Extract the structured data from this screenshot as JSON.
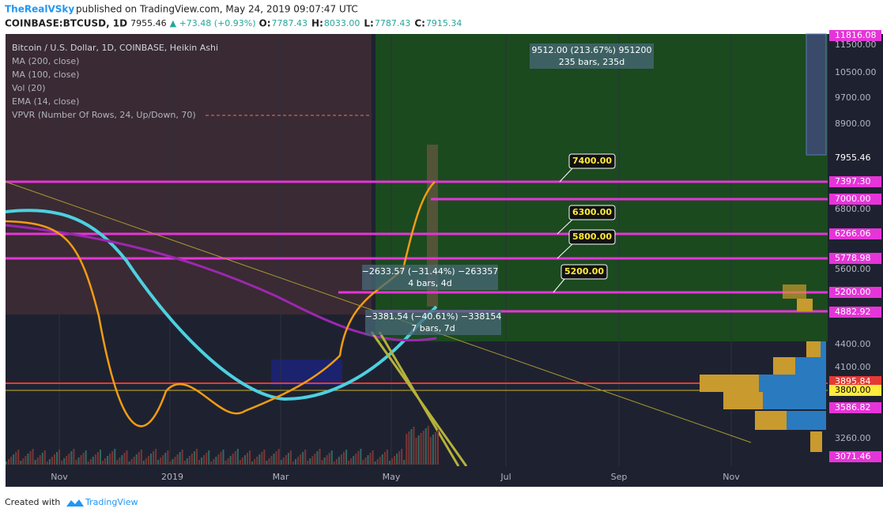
{
  "header": {
    "author": "TheRealVSky",
    "published": "published on TradingView.com, May 24, 2019 09:07:47 UTC",
    "symbol": "COINBASE:BTCUSD, 1D",
    "last": "7955.46",
    "change": "▲ +73.48 (+0.93%)",
    "ohlc": [
      {
        "key": "O:",
        "value": "7787.43"
      },
      {
        "key": "H:",
        "value": "8033.00"
      },
      {
        "key": "L:",
        "value": "7787.43"
      },
      {
        "key": "C:",
        "value": "7915.34"
      }
    ]
  },
  "legend": [
    "Bitcoin / U.S. Dollar, 1D, COINBASE, Heikin Ashi",
    "MA (200, close)",
    "MA (100, close)",
    "Vol (20)",
    "EMA (14, close)",
    "VPVR (Number Of Rows, 24, Up/Down, 70)"
  ],
  "price_axis": [
    "11816.08",
    "11500.00",
    "10500.00",
    "9700.00",
    "8900.00",
    "7955.46",
    "7397.30",
    "7000.00",
    "6800.00",
    "6266.06",
    "5778.98",
    "5600.00",
    "5200.00",
    "4882.92",
    "4400.00",
    "4100.00",
    "3895.84",
    "3800.00",
    "3586.82",
    "3260.00",
    "3071.46"
  ],
  "time_axis": [
    "Nov",
    "2019",
    "Mar",
    "May",
    "Jul",
    "Sep",
    "Nov"
  ],
  "callouts": [
    "7400.00",
    "6300.00",
    "5800.00",
    "5200.00"
  ],
  "measurements": [
    {
      "line1": "9512.00 (213.67%) 951200",
      "line2": "235 bars, 235d"
    },
    {
      "line1": "−2633.57 (−31.44%) −263357",
      "line2": "4 bars, 4d"
    },
    {
      "line1": "−3381.54 (−40.61%) −338154",
      "line2": "7 bars, 7d"
    }
  ],
  "footer": {
    "created": "Created with",
    "brand": "TradingView"
  }
}
